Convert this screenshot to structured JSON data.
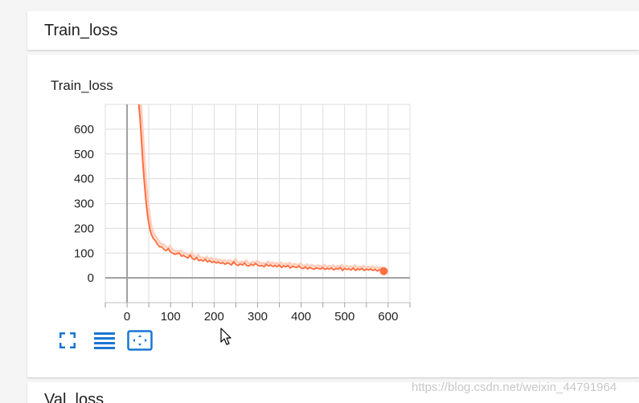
{
  "header": {
    "title": "Train_loss"
  },
  "next_card": {
    "title": "Val_loss"
  },
  "watermark": "https://blog.csdn.net/weixin_44791964",
  "toolbar": {
    "buttons": [
      {
        "icon": "fullscreen-icon",
        "color": "#1976d2"
      },
      {
        "icon": "list-icon",
        "color": "#1976d2"
      },
      {
        "icon": "fit-domain-icon",
        "color": "#1976d2"
      }
    ]
  },
  "colors": {
    "line": "#ff7043",
    "line_raw": "#ffcfbd",
    "grid": "#dcdcdc",
    "axis": "#9e9e9e",
    "accent": "#1976d2"
  },
  "chart_data": {
    "type": "line",
    "title": "Train_loss",
    "xlabel": "",
    "ylabel": "",
    "xlim": [
      -50,
      650
    ],
    "ylim": [
      -100,
      700
    ],
    "x_ticks": [
      0,
      100,
      200,
      300,
      400,
      500,
      600
    ],
    "y_ticks": [
      0,
      100,
      200,
      300,
      400,
      500,
      600
    ],
    "grid": true,
    "series": [
      {
        "x": [
          27,
          30,
          33,
          36,
          40,
          44,
          48,
          52,
          56,
          60,
          65,
          70,
          75,
          80,
          85,
          90,
          95,
          100,
          105,
          110,
          115,
          120,
          125,
          130,
          135,
          140,
          145,
          150,
          155,
          160,
          165,
          170,
          175,
          180,
          185,
          190,
          195,
          200,
          205,
          210,
          215,
          220,
          225,
          230,
          235,
          240,
          245,
          250,
          255,
          260,
          265,
          270,
          275,
          280,
          285,
          290,
          295,
          300,
          305,
          310,
          315,
          320,
          325,
          330,
          335,
          340,
          345,
          350,
          355,
          360,
          365,
          370,
          375,
          380,
          385,
          390,
          395,
          400,
          405,
          410,
          415,
          420,
          425,
          430,
          435,
          440,
          445,
          450,
          455,
          460,
          465,
          470,
          475,
          480,
          485,
          490,
          495,
          500,
          505,
          510,
          515,
          520,
          525,
          530,
          535,
          540,
          545,
          550,
          555,
          560,
          565,
          570,
          575,
          580,
          585,
          590
        ],
        "values": [
          700,
          640,
          560,
          470,
          380,
          300,
          240,
          200,
          175,
          160,
          150,
          135,
          125,
          125,
          115,
          110,
          118,
          105,
          100,
          95,
          98,
          100,
          88,
          90,
          85,
          80,
          92,
          78,
          74,
          82,
          70,
          72,
          68,
          75,
          65,
          70,
          62,
          66,
          60,
          64,
          58,
          62,
          55,
          60,
          58,
          52,
          65,
          55,
          50,
          56,
          52,
          60,
          50,
          48,
          55,
          50,
          58,
          52,
          48,
          50,
          45,
          55,
          48,
          52,
          46,
          50,
          45,
          52,
          42,
          48,
          45,
          50,
          40,
          46,
          44,
          42,
          48,
          40,
          38,
          44,
          36,
          42,
          38,
          35,
          40,
          38,
          36,
          42,
          34,
          38,
          36,
          40,
          32,
          38,
          35,
          42,
          30,
          38,
          34,
          36,
          32,
          40,
          30,
          36,
          33,
          38,
          30,
          35,
          32,
          36,
          30,
          34,
          28,
          32,
          30,
          27
        ]
      }
    ]
  }
}
